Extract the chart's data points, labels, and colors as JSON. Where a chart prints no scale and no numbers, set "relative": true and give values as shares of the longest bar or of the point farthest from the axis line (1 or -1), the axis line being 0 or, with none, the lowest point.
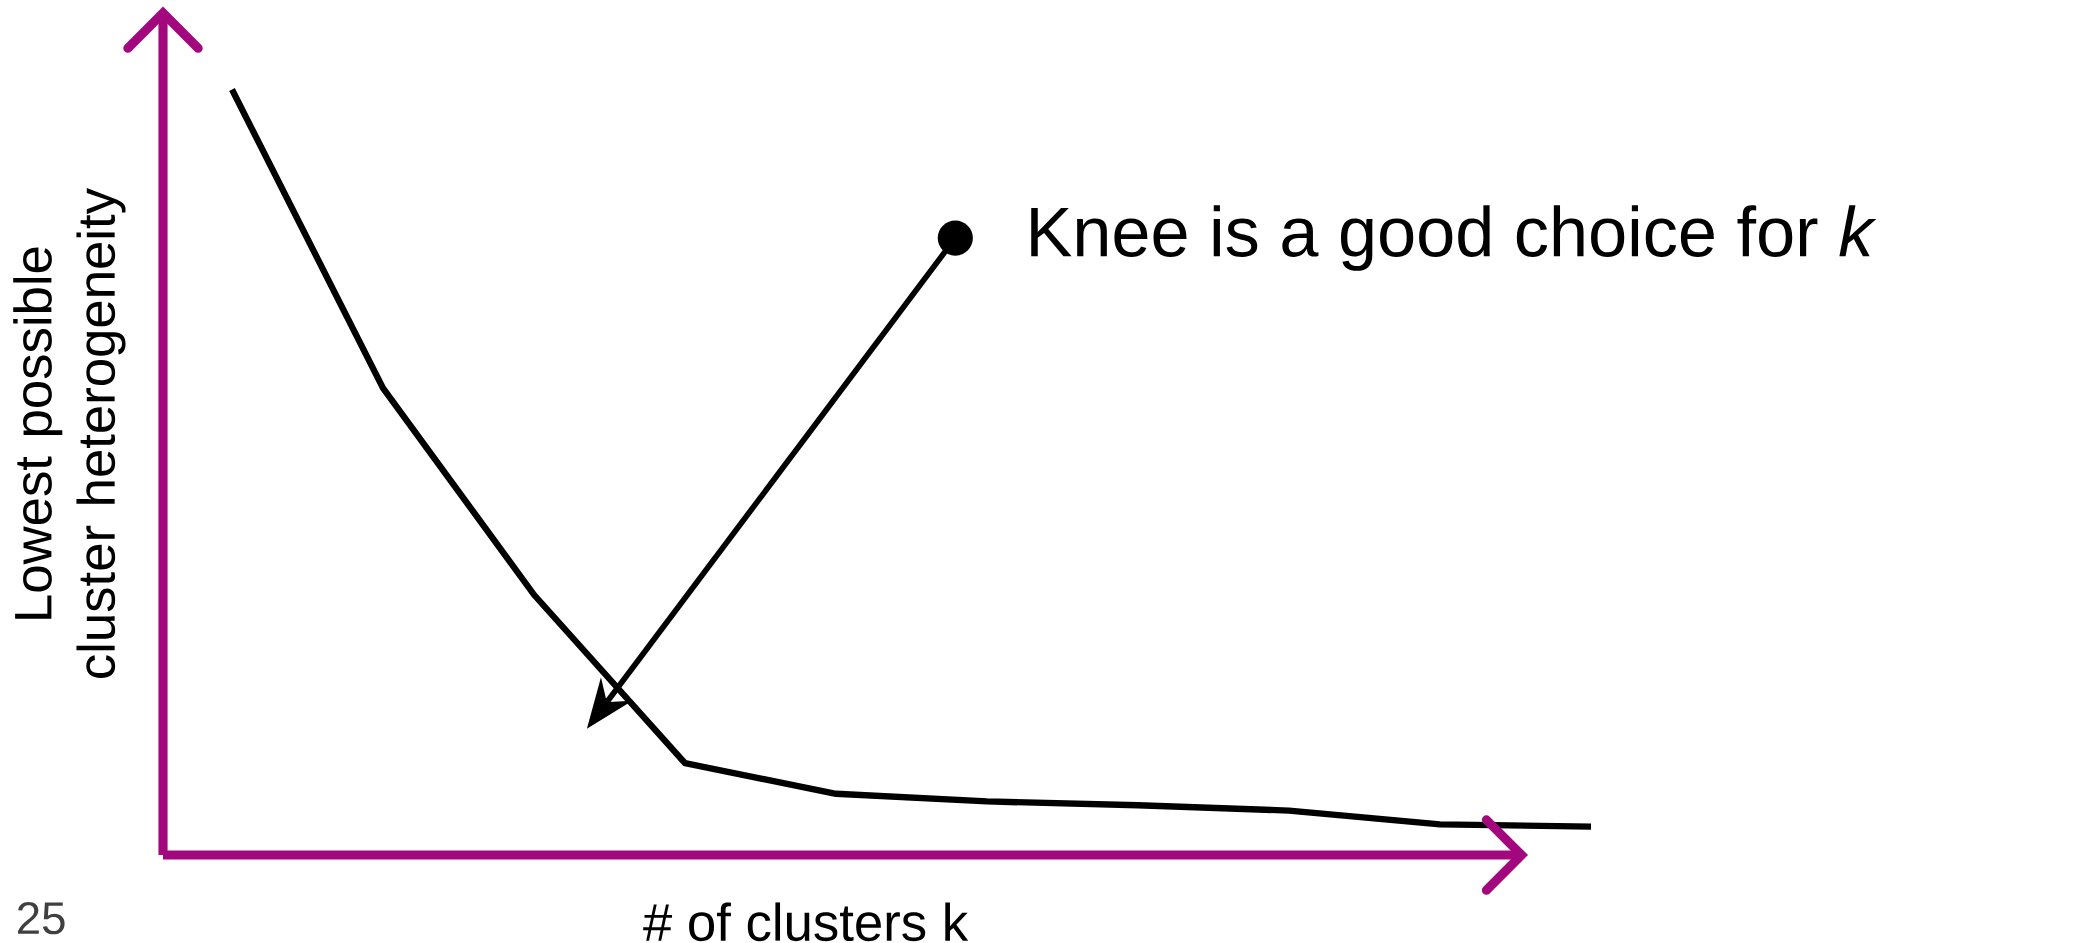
{
  "chart_data": {
    "type": "line",
    "relative": true,
    "xlabel": "# of clusters k",
    "ylabel": "Lowest possible cluster heterogeneity",
    "categories": [
      null,
      null,
      null,
      null,
      null,
      null,
      null,
      null,
      null,
      null
    ],
    "values": [
      1,
      0.61,
      0.34,
      0.12,
      0.08,
      0.07,
      0.065,
      0.058,
      0.04,
      0.037
    ],
    "color": "#000000",
    "marker": "none",
    "annotations": [
      "Knee is a good choice for *k*",
      "25"
    ]
  }
}
